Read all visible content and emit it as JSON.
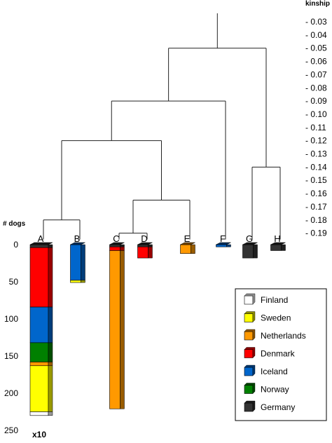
{
  "chart_data": {
    "type": "bar",
    "kinship_axis": {
      "label": "kinship",
      "ticks": [
        "- 0.03",
        "- 0.04",
        "- 0.05",
        "- 0.06",
        "- 0.07",
        "- 0.08",
        "- 0.09",
        "- 0.10",
        "- 0.11",
        "- 0.12",
        "- 0.13",
        "- 0.14",
        "- 0.15",
        "- 0.16",
        "- 0.17",
        "- 0.18",
        "- 0.19"
      ],
      "tick_values": [
        0.03,
        0.04,
        0.05,
        0.06,
        0.07,
        0.08,
        0.09,
        0.1,
        0.11,
        0.12,
        0.13,
        0.14,
        0.15,
        0.16,
        0.17,
        0.18,
        0.19
      ],
      "range": [
        0.027,
        0.19
      ]
    },
    "dogs_axis": {
      "label": "# dogs",
      "ticks": [
        "0",
        "50",
        "100",
        "150",
        "200",
        "250"
      ],
      "tick_values": [
        0,
        50,
        100,
        150,
        200,
        250
      ],
      "range": [
        0,
        250
      ]
    },
    "dendrogram": {
      "joins": [
        {
          "a": "C",
          "b": "D",
          "kinship": 0.19
        },
        {
          "a": "C+D",
          "b": "E",
          "kinship": 0.165
        },
        {
          "a": "A",
          "b": "B",
          "kinship": 0.18
        },
        {
          "a": "A+B",
          "b": "C+D+E",
          "kinship": 0.12
        },
        {
          "a": "A+B+C+D+E",
          "b": "F",
          "kinship": 0.09
        },
        {
          "a": "G",
          "b": "H",
          "kinship": 0.14
        },
        {
          "a": "A-F",
          "b": "G+H",
          "kinship": 0.05
        },
        {
          "a": "root",
          "b": "root",
          "kinship": 0.03
        }
      ]
    },
    "categories": [
      "A",
      "B",
      "C",
      "D",
      "E",
      "F",
      "G",
      "H"
    ],
    "series": [
      {
        "name": "Finland",
        "color": "#ffffff",
        "values": [
          5,
          0,
          0,
          0,
          0,
          0,
          0,
          0
        ]
      },
      {
        "name": "Sweden",
        "color": "#ffff00",
        "values": [
          62,
          3,
          0,
          0,
          0,
          0,
          0,
          0
        ]
      },
      {
        "name": "Netherlands",
        "color": "#ff9900",
        "values": [
          5,
          0,
          213,
          0,
          12,
          0,
          0,
          0
        ]
      },
      {
        "name": "Denmark",
        "color": "#ff0000",
        "values": [
          80,
          0,
          5,
          15,
          0,
          0,
          0,
          0
        ]
      },
      {
        "name": "Iceland",
        "color": "#0066cc",
        "values": [
          48,
          48,
          0,
          0,
          0,
          3,
          0,
          0
        ]
      },
      {
        "name": "Norway",
        "color": "#008000",
        "values": [
          26,
          0,
          0,
          0,
          0,
          0,
          0,
          0
        ]
      },
      {
        "name": "Germany",
        "color": "#333333",
        "values": [
          4,
          0,
          3,
          3,
          0,
          0,
          18,
          8
        ]
      }
    ],
    "annotation": "x10",
    "legend_placement": "bottom-right",
    "grid": false
  }
}
